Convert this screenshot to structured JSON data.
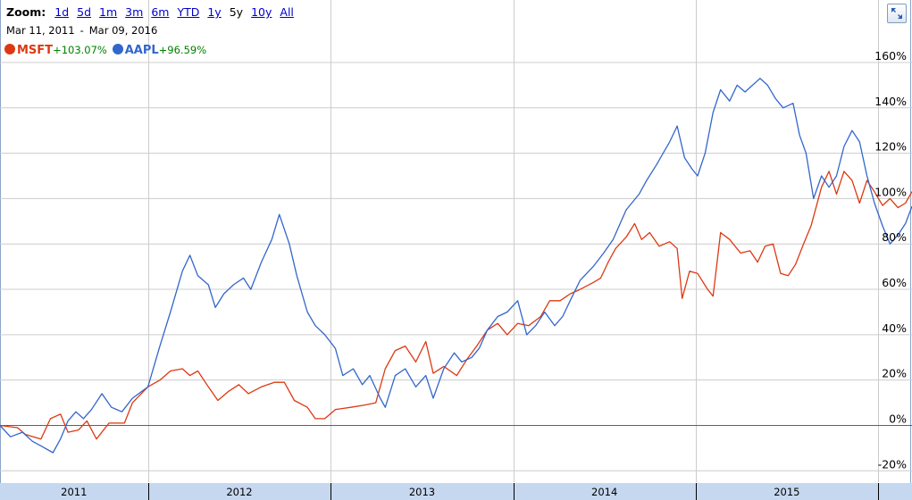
{
  "toolbar": {
    "zoom_label": "Zoom:",
    "options": [
      "1d",
      "5d",
      "1m",
      "3m",
      "6m",
      "YTD",
      "1y",
      "5y",
      "10y",
      "All"
    ],
    "selected": "5y",
    "start_date": "Mar 11, 2011",
    "separator": "-",
    "end_date": "Mar 09, 2016",
    "expand_icon": "expand-arrows-icon"
  },
  "legend": [
    {
      "name": "MSFT",
      "change": "+103.07%",
      "color": "#dc3912"
    },
    {
      "name": "AAPL",
      "change": "+96.59%",
      "color": "#3366cc"
    }
  ],
  "colors": {
    "msft": "#dc3912",
    "aapl": "#3366cc",
    "grid": "#cccccc",
    "zero_line": "#aa4433",
    "timeline_bg": "#c6d8f0",
    "change_text": "#008000"
  },
  "chart_data": {
    "type": "line",
    "ylim": [
      -25,
      160
    ],
    "yticks": [
      -20,
      0,
      20,
      40,
      60,
      80,
      100,
      120,
      140,
      160
    ],
    "ytick_labels": [
      "-20%",
      "0%",
      "20%",
      "40%",
      "60%",
      "80%",
      "100%",
      "120%",
      "140%",
      "160%"
    ],
    "x_years": [
      "2011",
      "2012",
      "2013",
      "2014",
      "2015"
    ],
    "grid": true,
    "legend_position": "top-left",
    "series": [
      {
        "name": "MSFT",
        "points": [
          [
            "2011-03-11",
            0
          ],
          [
            "2011-04-15",
            -1
          ],
          [
            "2011-05-01",
            -4
          ],
          [
            "2011-06-01",
            -6
          ],
          [
            "2011-06-20",
            3
          ],
          [
            "2011-07-10",
            5
          ],
          [
            "2011-07-25",
            -3
          ],
          [
            "2011-08-15",
            -2
          ],
          [
            "2011-09-01",
            2
          ],
          [
            "2011-09-20",
            -6
          ],
          [
            "2011-10-15",
            1
          ],
          [
            "2011-11-15",
            1
          ],
          [
            "2011-12-01",
            10
          ],
          [
            "2012-01-01",
            17
          ],
          [
            "2012-01-25",
            20
          ],
          [
            "2012-02-15",
            24
          ],
          [
            "2012-03-10",
            25
          ],
          [
            "2012-03-25",
            22
          ],
          [
            "2012-04-10",
            24
          ],
          [
            "2012-05-01",
            17
          ],
          [
            "2012-05-20",
            11
          ],
          [
            "2012-06-10",
            15
          ],
          [
            "2012-07-01",
            18
          ],
          [
            "2012-07-20",
            14
          ],
          [
            "2012-08-15",
            17
          ],
          [
            "2012-09-10",
            19
          ],
          [
            "2012-09-30",
            19
          ],
          [
            "2012-10-20",
            11
          ],
          [
            "2012-11-15",
            8
          ],
          [
            "2012-12-01",
            3
          ],
          [
            "2012-12-20",
            3
          ],
          [
            "2013-01-10",
            7
          ],
          [
            "2013-02-10",
            8
          ],
          [
            "2013-03-10",
            9
          ],
          [
            "2013-04-01",
            10
          ],
          [
            "2013-04-20",
            25
          ],
          [
            "2013-05-10",
            33
          ],
          [
            "2013-05-30",
            35
          ],
          [
            "2013-06-20",
            28
          ],
          [
            "2013-07-10",
            37
          ],
          [
            "2013-07-25",
            23
          ],
          [
            "2013-08-15",
            26
          ],
          [
            "2013-09-10",
            22
          ],
          [
            "2013-09-30",
            29
          ],
          [
            "2013-10-20",
            35
          ],
          [
            "2013-11-10",
            42
          ],
          [
            "2013-12-01",
            45
          ],
          [
            "2013-12-20",
            40
          ],
          [
            "2014-01-10",
            45
          ],
          [
            "2014-02-01",
            44
          ],
          [
            "2014-02-25",
            48
          ],
          [
            "2014-03-15",
            55
          ],
          [
            "2014-04-05",
            55
          ],
          [
            "2014-04-25",
            58
          ],
          [
            "2014-05-15",
            60
          ],
          [
            "2014-06-10",
            63
          ],
          [
            "2014-06-25",
            65
          ],
          [
            "2014-07-10",
            72
          ],
          [
            "2014-07-25",
            78
          ],
          [
            "2014-08-15",
            83
          ],
          [
            "2014-09-01",
            89
          ],
          [
            "2014-09-15",
            82
          ],
          [
            "2014-10-01",
            85
          ],
          [
            "2014-10-20",
            79
          ],
          [
            "2014-11-10",
            81
          ],
          [
            "2014-11-25",
            78
          ],
          [
            "2014-12-05",
            56
          ],
          [
            "2014-12-20",
            68
          ],
          [
            "2015-01-05",
            67
          ],
          [
            "2015-01-25",
            60
          ],
          [
            "2015-02-05",
            57
          ],
          [
            "2015-02-20",
            85
          ],
          [
            "2015-03-10",
            82
          ],
          [
            "2015-04-01",
            76
          ],
          [
            "2015-04-20",
            77
          ],
          [
            "2015-05-05",
            72
          ],
          [
            "2015-05-20",
            79
          ],
          [
            "2015-06-05",
            80
          ],
          [
            "2015-06-20",
            67
          ],
          [
            "2015-07-05",
            66
          ],
          [
            "2015-07-20",
            71
          ],
          [
            "2015-08-05",
            80
          ],
          [
            "2015-08-20",
            88
          ],
          [
            "2015-09-10",
            105
          ],
          [
            "2015-09-25",
            112
          ],
          [
            "2015-10-10",
            102
          ],
          [
            "2015-10-25",
            112
          ],
          [
            "2015-11-10",
            108
          ],
          [
            "2015-11-25",
            98
          ],
          [
            "2015-12-10",
            108
          ],
          [
            "2015-12-25",
            103
          ],
          [
            "2016-01-10",
            97
          ],
          [
            "2016-01-25",
            100
          ],
          [
            "2016-02-10",
            96
          ],
          [
            "2016-02-25",
            98
          ],
          [
            "2016-03-09",
            103.07
          ]
        ]
      },
      {
        "name": "AAPL",
        "points": [
          [
            "2011-03-11",
            0
          ],
          [
            "2011-04-01",
            -5
          ],
          [
            "2011-04-25",
            -3
          ],
          [
            "2011-05-15",
            -7
          ],
          [
            "2011-06-01",
            -9
          ],
          [
            "2011-06-25",
            -12
          ],
          [
            "2011-07-10",
            -6
          ],
          [
            "2011-07-25",
            2
          ],
          [
            "2011-08-10",
            6
          ],
          [
            "2011-08-25",
            3
          ],
          [
            "2011-09-10",
            7
          ],
          [
            "2011-10-01",
            14
          ],
          [
            "2011-10-20",
            8
          ],
          [
            "2011-11-10",
            6
          ],
          [
            "2011-12-01",
            12
          ],
          [
            "2012-01-01",
            17
          ],
          [
            "2012-01-25",
            35
          ],
          [
            "2012-02-15",
            50
          ],
          [
            "2012-03-10",
            68
          ],
          [
            "2012-03-25",
            75
          ],
          [
            "2012-04-10",
            66
          ],
          [
            "2012-05-01",
            62
          ],
          [
            "2012-05-15",
            52
          ],
          [
            "2012-06-01",
            58
          ],
          [
            "2012-06-20",
            62
          ],
          [
            "2012-07-10",
            65
          ],
          [
            "2012-07-25",
            60
          ],
          [
            "2012-08-15",
            72
          ],
          [
            "2012-09-05",
            82
          ],
          [
            "2012-09-20",
            93
          ],
          [
            "2012-10-10",
            80
          ],
          [
            "2012-10-25",
            66
          ],
          [
            "2012-11-15",
            50
          ],
          [
            "2012-12-01",
            44
          ],
          [
            "2012-12-20",
            40
          ],
          [
            "2013-01-10",
            34
          ],
          [
            "2013-01-25",
            22
          ],
          [
            "2013-02-15",
            25
          ],
          [
            "2013-03-05",
            18
          ],
          [
            "2013-03-20",
            22
          ],
          [
            "2013-04-10",
            12
          ],
          [
            "2013-04-20",
            8
          ],
          [
            "2013-05-10",
            22
          ],
          [
            "2013-05-30",
            25
          ],
          [
            "2013-06-20",
            17
          ],
          [
            "2013-07-10",
            22
          ],
          [
            "2013-07-25",
            12
          ],
          [
            "2013-08-15",
            25
          ],
          [
            "2013-09-05",
            32
          ],
          [
            "2013-09-20",
            28
          ],
          [
            "2013-10-10",
            30
          ],
          [
            "2013-10-25",
            34
          ],
          [
            "2013-11-10",
            42
          ],
          [
            "2013-12-01",
            48
          ],
          [
            "2013-12-20",
            50
          ],
          [
            "2014-01-10",
            55
          ],
          [
            "2014-01-28",
            40
          ],
          [
            "2014-02-15",
            44
          ],
          [
            "2014-03-05",
            50
          ],
          [
            "2014-03-25",
            44
          ],
          [
            "2014-04-10",
            48
          ],
          [
            "2014-04-25",
            55
          ],
          [
            "2014-05-15",
            64
          ],
          [
            "2014-06-10",
            70
          ],
          [
            "2014-07-01",
            76
          ],
          [
            "2014-07-20",
            82
          ],
          [
            "2014-08-15",
            95
          ],
          [
            "2014-09-10",
            102
          ],
          [
            "2014-09-25",
            108
          ],
          [
            "2014-10-15",
            115
          ],
          [
            "2014-10-28",
            120
          ],
          [
            "2014-11-10",
            125
          ],
          [
            "2014-11-25",
            132
          ],
          [
            "2014-12-10",
            118
          ],
          [
            "2014-12-25",
            113
          ],
          [
            "2015-01-05",
            110
          ],
          [
            "2015-01-20",
            120
          ],
          [
            "2015-02-05",
            138
          ],
          [
            "2015-02-20",
            148
          ],
          [
            "2015-03-10",
            143
          ],
          [
            "2015-03-25",
            150
          ],
          [
            "2015-04-10",
            147
          ],
          [
            "2015-04-25",
            150
          ],
          [
            "2015-05-10",
            153
          ],
          [
            "2015-05-25",
            150
          ],
          [
            "2015-06-10",
            144
          ],
          [
            "2015-06-25",
            140
          ],
          [
            "2015-07-15",
            142
          ],
          [
            "2015-07-28",
            128
          ],
          [
            "2015-08-10",
            120
          ],
          [
            "2015-08-25",
            100
          ],
          [
            "2015-09-10",
            110
          ],
          [
            "2015-09-25",
            105
          ],
          [
            "2015-10-10",
            110
          ],
          [
            "2015-10-25",
            123
          ],
          [
            "2015-11-10",
            130
          ],
          [
            "2015-11-25",
            125
          ],
          [
            "2015-12-10",
            110
          ],
          [
            "2015-12-25",
            98
          ],
          [
            "2016-01-10",
            88
          ],
          [
            "2016-01-25",
            80
          ],
          [
            "2016-02-10",
            84
          ],
          [
            "2016-02-25",
            89
          ],
          [
            "2016-03-09",
            96.59
          ]
        ]
      }
    ]
  }
}
